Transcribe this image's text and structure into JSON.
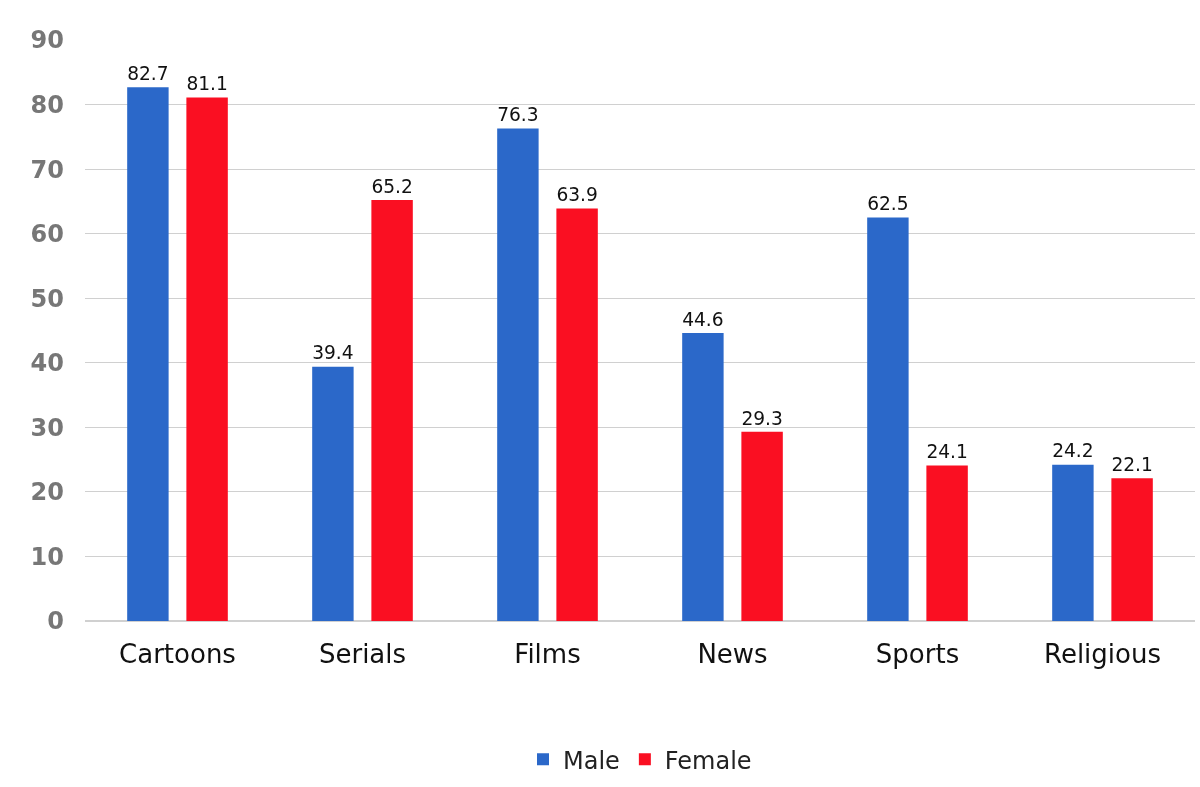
{
  "chart_data": {
    "type": "bar",
    "categories": [
      "Cartoons",
      "Serials",
      "Films",
      "News",
      "Sports",
      "Religious"
    ],
    "series": [
      {
        "name": "Male",
        "color": "#2b68c9",
        "values": [
          82.7,
          39.4,
          76.3,
          44.6,
          62.5,
          24.2
        ]
      },
      {
        "name": "Female",
        "color": "#fa0f22",
        "values": [
          81.1,
          65.2,
          63.9,
          29.3,
          24.1,
          22.1
        ]
      }
    ],
    "ylim": [
      0,
      90
    ],
    "yticks": [
      0,
      10,
      20,
      30,
      40,
      50,
      60,
      70,
      80,
      90
    ],
    "grid": "y",
    "legend": "bottom",
    "data_labels": true
  }
}
